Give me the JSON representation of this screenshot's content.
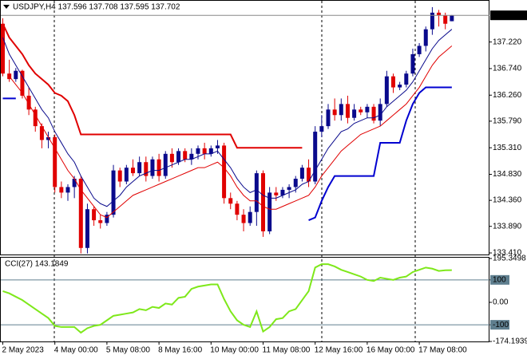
{
  "chart_data": [
    {
      "type": "candlestick",
      "title": "USDJPY,H4  137.596 137.708 137.595 137.702",
      "categories": [
        "2 May 2023",
        null,
        null,
        null,
        null,
        null,
        null,
        null,
        "4 May 00:00",
        null,
        null,
        null,
        null,
        null,
        null,
        null,
        "5 May 08:00",
        null,
        null,
        null,
        null,
        null,
        null,
        null,
        "8 May 16:00",
        null,
        null,
        null,
        null,
        null,
        null,
        null,
        "10 May 00:00",
        null,
        null,
        null,
        null,
        null,
        null,
        null,
        "11 May 08:00",
        null,
        null,
        null,
        null,
        null,
        null,
        null,
        "12 May 16:00",
        null,
        null,
        null,
        null,
        null,
        null,
        null,
        "16 May 00:00",
        null,
        null,
        null,
        null,
        null,
        null,
        null,
        "17 May 08:00",
        null,
        null,
        null,
        null,
        null
      ],
      "open": [
        137.55,
        136.65,
        136.55,
        136.7,
        136.25,
        136.0,
        135.7,
        135.45,
        135.5,
        134.6,
        134.5,
        134.6,
        134.75,
        133.5,
        134.2,
        134.0,
        133.95,
        134.1,
        134.9,
        134.7,
        134.95,
        134.85,
        135.05,
        134.8,
        135.1,
        134.8,
        135.2,
        135.05,
        135.25,
        135.1,
        135.2,
        135.3,
        135.2,
        135.3,
        135.35,
        134.4,
        134.3,
        134.1,
        133.95,
        134.15,
        134.85,
        133.8,
        134.5,
        134.45,
        134.55,
        134.6,
        134.75,
        134.95,
        134.7,
        135.6,
        135.7,
        136.0,
        135.9,
        136.1,
        135.85,
        136.0,
        135.95,
        136.05,
        135.8,
        136.1,
        136.6,
        136.4,
        136.45,
        136.65,
        137.0,
        137.15,
        137.45,
        137.75,
        137.7,
        137.596
      ],
      "high": [
        137.65,
        136.9,
        136.75,
        136.72,
        136.4,
        136.05,
        135.75,
        135.6,
        135.55,
        134.7,
        134.65,
        134.8,
        134.8,
        134.3,
        134.25,
        134.1,
        134.15,
        135.0,
        134.95,
        135.0,
        135.1,
        135.15,
        135.15,
        135.15,
        135.2,
        135.25,
        135.3,
        135.3,
        135.3,
        135.3,
        135.35,
        135.4,
        135.35,
        135.45,
        135.4,
        134.5,
        134.35,
        134.2,
        134.25,
        134.9,
        134.9,
        134.6,
        134.6,
        134.6,
        134.65,
        134.8,
        135.0,
        135.1,
        135.7,
        135.9,
        136.1,
        136.2,
        136.2,
        136.25,
        136.1,
        136.05,
        136.1,
        136.1,
        136.2,
        136.7,
        136.65,
        136.5,
        136.7,
        137.1,
        137.2,
        137.5,
        137.85,
        137.8,
        137.75,
        137.708
      ],
      "low": [
        136.6,
        136.5,
        136.5,
        136.2,
        135.9,
        135.6,
        135.3,
        135.3,
        134.5,
        134.4,
        134.35,
        134.4,
        133.4,
        133.4,
        133.9,
        133.85,
        133.9,
        134.05,
        134.6,
        134.65,
        134.8,
        134.8,
        134.7,
        134.75,
        134.7,
        134.75,
        134.95,
        135.0,
        135.05,
        135.0,
        135.1,
        135.1,
        135.15,
        135.2,
        134.3,
        134.2,
        134.0,
        133.8,
        133.9,
        133.9,
        133.7,
        133.75,
        134.35,
        134.4,
        134.4,
        134.5,
        134.7,
        134.6,
        134.65,
        135.5,
        135.65,
        135.8,
        135.8,
        135.75,
        135.8,
        135.9,
        135.85,
        135.75,
        135.7,
        136.05,
        136.3,
        136.35,
        136.4,
        136.6,
        136.95,
        137.05,
        137.35,
        137.5,
        137.45,
        137.595
      ],
      "close": [
        136.65,
        136.55,
        136.7,
        136.25,
        136.0,
        135.7,
        135.45,
        135.5,
        134.6,
        134.5,
        134.6,
        134.75,
        133.5,
        134.2,
        134.0,
        133.95,
        134.1,
        134.9,
        134.7,
        134.95,
        134.85,
        135.05,
        134.8,
        135.1,
        134.8,
        135.2,
        135.05,
        135.25,
        135.1,
        135.2,
        135.3,
        135.2,
        135.3,
        135.35,
        134.4,
        134.3,
        134.1,
        133.95,
        134.15,
        134.85,
        133.8,
        134.5,
        134.45,
        134.55,
        134.6,
        134.75,
        134.95,
        134.7,
        135.6,
        135.7,
        136.0,
        135.9,
        136.1,
        135.85,
        136.0,
        135.95,
        136.05,
        135.8,
        136.1,
        136.6,
        136.4,
        136.45,
        136.65,
        137.0,
        137.15,
        137.45,
        137.75,
        137.7,
        137.55,
        137.702
      ],
      "up_color": "#0a0a8c",
      "down_color": "#e00000",
      "lines": [
        {
          "color": "#0a0a8c",
          "values": [
            137.3,
            137.0,
            136.8,
            136.6,
            136.4,
            136.2,
            136.0,
            135.85,
            135.6,
            135.4,
            135.2,
            135.05,
            134.8,
            134.6,
            134.4,
            134.3,
            134.25,
            134.35,
            134.45,
            134.6,
            134.7,
            134.8,
            134.85,
            134.9,
            134.9,
            134.95,
            135.0,
            135.05,
            135.1,
            135.1,
            135.15,
            135.2,
            135.2,
            135.25,
            135.1,
            134.95,
            134.75,
            134.6,
            134.5,
            134.55,
            134.45,
            134.4,
            134.4,
            134.45,
            134.5,
            134.55,
            134.65,
            134.7,
            134.9,
            135.1,
            135.3,
            135.45,
            135.6,
            135.65,
            135.75,
            135.8,
            135.85,
            135.85,
            135.9,
            136.05,
            136.15,
            136.25,
            136.35,
            136.5,
            136.7,
            136.9,
            137.1,
            137.25,
            137.35,
            137.45
          ]
        },
        {
          "color": "#e00000",
          "values": [
            null,
            136.6,
            136.45,
            136.3,
            136.1,
            135.9,
            135.7,
            135.5,
            135.3,
            135.1,
            134.9,
            134.75,
            134.55,
            134.4,
            134.25,
            134.1,
            134.05,
            134.15,
            134.25,
            134.35,
            134.45,
            134.5,
            134.55,
            134.6,
            134.65,
            134.7,
            134.75,
            134.8,
            134.85,
            134.9,
            134.95,
            134.95,
            135.0,
            135.05,
            134.95,
            134.8,
            134.6,
            134.45,
            134.35,
            134.35,
            134.25,
            134.2,
            134.2,
            134.25,
            134.3,
            134.35,
            134.4,
            134.45,
            134.6,
            134.8,
            134.95,
            135.1,
            135.25,
            135.35,
            135.45,
            135.55,
            135.6,
            135.65,
            135.7,
            135.8,
            135.9,
            136.0,
            136.1,
            136.25,
            136.4,
            136.6,
            136.8,
            136.95,
            137.05,
            137.15
          ]
        },
        {
          "color": "#e00000",
          "width": 2,
          "values": [
            137.55,
            137.3,
            137.15,
            137.0,
            136.8,
            136.65,
            136.55,
            136.45,
            136.3,
            136.25,
            136.15,
            135.9,
            135.55,
            135.55,
            135.55,
            135.55,
            135.55,
            135.55,
            135.55,
            135.55,
            135.55,
            135.55,
            135.55,
            135.55,
            135.55,
            135.55,
            135.55,
            135.55,
            135.55,
            135.55,
            135.55,
            135.55,
            135.55,
            135.55,
            135.55,
            135.55,
            135.31,
            135.31,
            135.31,
            135.31,
            135.31,
            135.31,
            135.31,
            135.31,
            135.31,
            135.31,
            135.31,
            null,
            null,
            null,
            null,
            null,
            null,
            null,
            null,
            null,
            null,
            null,
            null,
            null,
            null,
            null,
            null,
            null,
            null,
            null,
            null,
            null,
            null,
            null
          ]
        },
        {
          "color": "#0000d0",
          "width": 2,
          "values": [
            136.2,
            136.2,
            136.2,
            null,
            null,
            null,
            null,
            null,
            null,
            null,
            null,
            null,
            null,
            null,
            null,
            null,
            null,
            null,
            null,
            null,
            null,
            null,
            null,
            null,
            null,
            null,
            null,
            null,
            null,
            null,
            null,
            null,
            null,
            null,
            null,
            null,
            null,
            null,
            null,
            null,
            null,
            null,
            null,
            null,
            null,
            null,
            null,
            134.0,
            134.05,
            134.35,
            134.6,
            134.8,
            134.8,
            134.8,
            134.8,
            134.8,
            134.8,
            134.8,
            135.4,
            135.4,
            135.4,
            135.4,
            135.8,
            136.1,
            136.3,
            136.4,
            136.4,
            136.4,
            136.4,
            136.4
          ]
        }
      ],
      "ylim": [
        133.396,
        137.95
      ],
      "yticks": [
        {
          "value": 133.41,
          "label": "133.410"
        },
        {
          "value": 133.89,
          "label": "133.890"
        },
        {
          "value": 134.36,
          "label": "134.360"
        },
        {
          "value": 134.83,
          "label": "134.830"
        },
        {
          "value": 135.31,
          "label": "135.310"
        },
        {
          "value": 135.79,
          "label": "135.790"
        },
        {
          "value": 136.26,
          "label": "136.260"
        },
        {
          "value": 136.74,
          "label": "136.740"
        },
        {
          "value": 137.22,
          "label": "137.220"
        }
      ]
    },
    {
      "type": "line",
      "title": "CCI(27) 143.1849",
      "color": "#7ee81a",
      "values": [
        50,
        40,
        25,
        10,
        -10,
        -30,
        -50,
        -70,
        -105,
        -110,
        -110,
        -110,
        -135,
        -115,
        -105,
        -100,
        -80,
        -60,
        -55,
        -50,
        -45,
        -30,
        -35,
        -20,
        -25,
        -5,
        -10,
        20,
        25,
        60,
        70,
        75,
        80,
        80,
        15,
        -40,
        -80,
        -100,
        -110,
        -40,
        -130,
        -110,
        -75,
        -70,
        -40,
        -30,
        10,
        50,
        155,
        170,
        170,
        160,
        145,
        135,
        125,
        115,
        100,
        95,
        110,
        105,
        100,
        110,
        115,
        135,
        145,
        155,
        150,
        140,
        143,
        143.1849
      ],
      "levels": [
        100,
        -100
      ],
      "level_color": "#5f7f8f",
      "ylim": [
        -174.1939,
        195.3498
      ],
      "yticks": [
        195.3498,
        100,
        {
          "value": 0,
          "label": "0.00"
        },
        -100,
        -174.1939
      ]
    }
  ]
}
